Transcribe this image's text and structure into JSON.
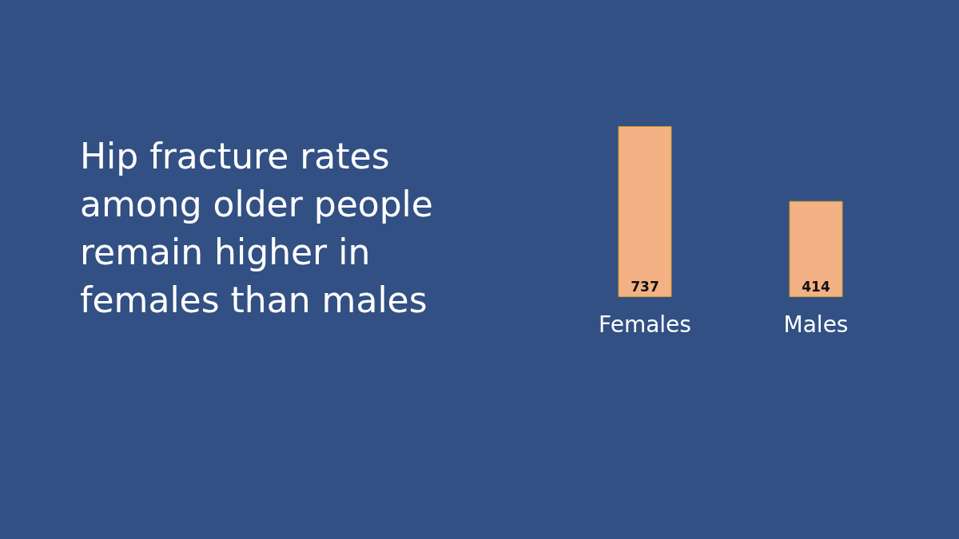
{
  "chart_data": {
    "type": "bar",
    "title": "Hip fracture rates among older people remain higher in females than males",
    "categories": [
      "Females",
      "Males"
    ],
    "series": [
      {
        "color": "#f4b183",
        "values": [
          737,
          414
        ]
      }
    ],
    "data_labels": true
  }
}
